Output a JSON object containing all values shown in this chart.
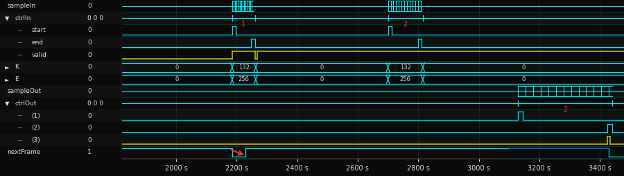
{
  "bg_color": "#0a0a0a",
  "row_bg_even": "#0a0a0a",
  "row_bg_odd": "#111111",
  "label_bg": "#2a2a2a",
  "sep_color": "#3a3a3a",
  "cyan": "#00e8f0",
  "yellow": "#c8c800",
  "blue_dark": "#1a4a8a",
  "blue_mid": "#2060aa",
  "white": "#e0e0e0",
  "red": "#ff3030",
  "grid_color": "#252525",
  "x_min": 1820,
  "x_max": 3480,
  "rows": [
    {
      "name": "sampleIn",
      "value": "0",
      "indent": 0,
      "prefix": ""
    },
    {
      "name": "ctrlIn",
      "value": "0 0 0",
      "indent": 0,
      "prefix": "v"
    },
    {
      "name": "start",
      "value": "0",
      "indent": 1,
      "prefix": "L"
    },
    {
      "name": "end",
      "value": "0",
      "indent": 1,
      "prefix": "L"
    },
    {
      "name": "valid",
      "value": "0",
      "indent": 1,
      "prefix": "L"
    },
    {
      "name": "K",
      "value": "0",
      "indent": 0,
      "prefix": "r"
    },
    {
      "name": "E",
      "value": "0",
      "indent": 0,
      "prefix": "r"
    },
    {
      "name": "sampleOut",
      "value": "0",
      "indent": 0,
      "prefix": ""
    },
    {
      "name": "ctrlOut",
      "value": "0 0 0",
      "indent": 0,
      "prefix": "v"
    },
    {
      "name": "(1)",
      "value": "0",
      "indent": 1,
      "prefix": "L"
    },
    {
      "name": "(2)",
      "value": "0",
      "indent": 1,
      "prefix": "L"
    },
    {
      "name": "(3)",
      "value": "0",
      "indent": 1,
      "prefix": "L"
    },
    {
      "name": "nextFrame",
      "value": "1",
      "indent": 0,
      "prefix": ""
    }
  ],
  "tick_times": [
    2000,
    2200,
    2400,
    2600,
    2800,
    3000,
    3200,
    3400
  ]
}
